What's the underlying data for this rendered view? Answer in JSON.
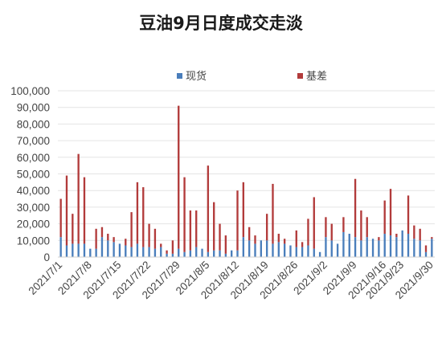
{
  "chart_data": {
    "type": "bar",
    "stacked": true,
    "title": "豆油9月日度成交走淡",
    "xlabel": "",
    "ylabel": "",
    "ylim": [
      0,
      100000
    ],
    "y_ticks": [
      "0",
      "10,000",
      "20,000",
      "30,000",
      "40,000",
      "50,000",
      "60,000",
      "70,000",
      "80,000",
      "90,000",
      "100,000"
    ],
    "x_tick_labels": [
      "2021/7/1",
      "2021/7/8",
      "2021/7/15",
      "2021/7/22",
      "2021/7/29",
      "2021/8/5",
      "2021/8/12",
      "2021/8/19",
      "2021/8/26",
      "2021/9/2",
      "2021/9/9",
      "2021/9/16",
      "2021/9/23",
      "2021/9/30"
    ],
    "legend_position": "top",
    "grid": true,
    "colors": {
      "spot": "#4a7ebb",
      "basis": "#b23b3b"
    },
    "categories": [
      "2021/7/1",
      "2021/7/2",
      "2021/7/5",
      "2021/7/6",
      "2021/7/7",
      "2021/7/8",
      "2021/7/9",
      "2021/7/12",
      "2021/7/13",
      "2021/7/14",
      "2021/7/15",
      "2021/7/16",
      "2021/7/19",
      "2021/7/20",
      "2021/7/21",
      "2021/7/22",
      "2021/7/23",
      "2021/7/26",
      "2021/7/27",
      "2021/7/28",
      "2021/7/29",
      "2021/7/30",
      "2021/8/2",
      "2021/8/3",
      "2021/8/4",
      "2021/8/5",
      "2021/8/6",
      "2021/8/9",
      "2021/8/10",
      "2021/8/11",
      "2021/8/12",
      "2021/8/13",
      "2021/8/16",
      "2021/8/17",
      "2021/8/18",
      "2021/8/19",
      "2021/8/20",
      "2021/8/23",
      "2021/8/24",
      "2021/8/25",
      "2021/8/26",
      "2021/8/27",
      "2021/8/30",
      "2021/8/31",
      "2021/9/1",
      "2021/9/2",
      "2021/9/3",
      "2021/9/6",
      "2021/9/7",
      "2021/9/8",
      "2021/9/9",
      "2021/9/10",
      "2021/9/13",
      "2021/9/14",
      "2021/9/15",
      "2021/9/16",
      "2021/9/17",
      "2021/9/22",
      "2021/9/23",
      "2021/9/24",
      "2021/9/27",
      "2021/9/28",
      "2021/9/29",
      "2021/9/30"
    ],
    "series": [
      {
        "name": "现货",
        "values": [
          12000,
          7000,
          8000,
          8000,
          8000,
          5000,
          5000,
          12000,
          10000,
          9000,
          8000,
          7000,
          6000,
          8000,
          6000,
          6000,
          5000,
          6000,
          2000,
          2000,
          5000,
          3000,
          4000,
          6000,
          5000,
          3000,
          4000,
          4000,
          2000,
          4000,
          4000,
          12000,
          10000,
          8000,
          10000,
          10000,
          8000,
          9000,
          8000,
          7000,
          6000,
          6000,
          7000,
          5000,
          3000,
          12000,
          10000,
          8000,
          15000,
          14000,
          12000,
          10000,
          12000,
          11000,
          10000,
          14000,
          13000,
          12000,
          16000,
          14000,
          11000,
          10000,
          3000,
          11000
        ]
      },
      {
        "name": "基差",
        "values": [
          23000,
          42000,
          18000,
          54000,
          40000,
          0,
          12000,
          6000,
          4000,
          3000,
          0,
          4000,
          21000,
          37000,
          36000,
          14000,
          12000,
          2000,
          2000,
          8000,
          86000,
          45000,
          24000,
          22000,
          0,
          52000,
          29000,
          16000,
          11000,
          0,
          36000,
          33000,
          8000,
          5000,
          0,
          16000,
          36000,
          5000,
          3000,
          0,
          10000,
          3000,
          16000,
          31000,
          0,
          12000,
          10000,
          0,
          9000,
          0,
          35000,
          18000,
          12000,
          0,
          2000,
          20000,
          28000,
          2000,
          0,
          23000,
          8000,
          7000,
          4000,
          1000
        ]
      }
    ]
  }
}
